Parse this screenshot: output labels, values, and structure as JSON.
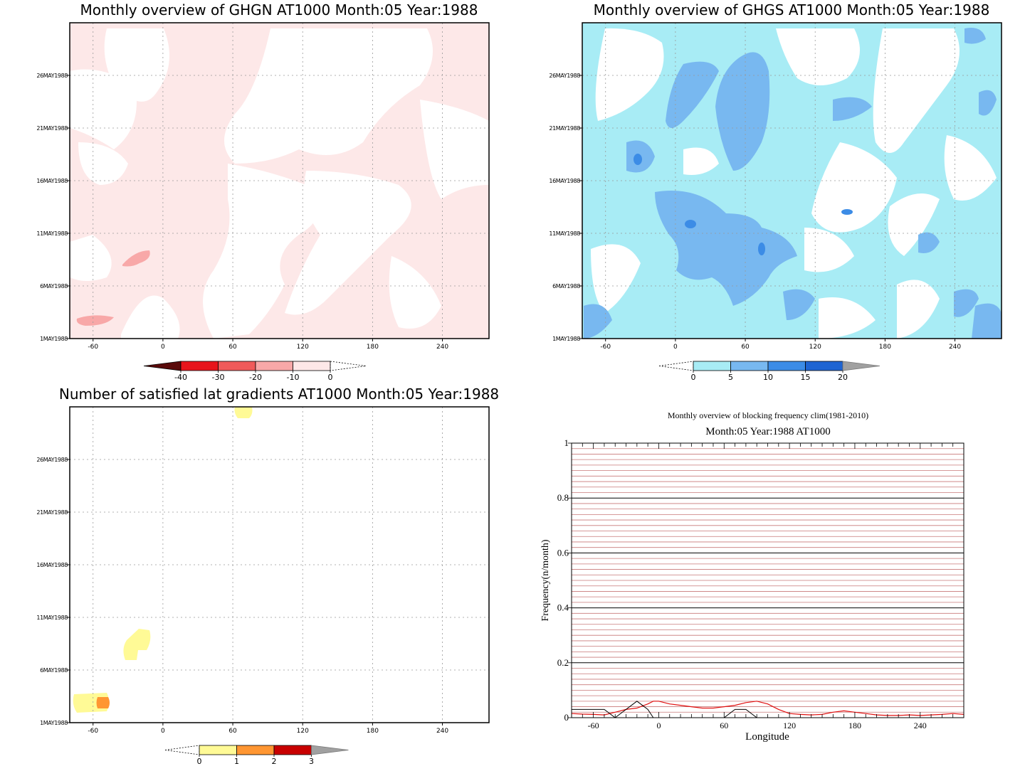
{
  "panels": [
    {
      "title": "Monthly overview of GHGN AT1000 Month:05 Year:1988",
      "y_ticks": [
        "1MAY1988",
        "6MAY1988",
        "11MAY1988",
        "16MAY1988",
        "21MAY1988",
        "26MAY1988"
      ],
      "x_ticks": [
        "-60",
        "0",
        "60",
        "120",
        "180",
        "240"
      ],
      "colorbar": {
        "labels": [
          "-40",
          "-30",
          "-20",
          "-10",
          "0"
        ],
        "colors": [
          "#5a0a0a",
          "#e8141c",
          "#f05a5a",
          "#f8a8a8",
          "#fde8e8"
        ]
      }
    },
    {
      "title": "Monthly overview of GHGS AT1000 Month:05 Year:1988",
      "y_ticks": [
        "1MAY1988",
        "6MAY1988",
        "11MAY1988",
        "16MAY1988",
        "21MAY1988",
        "26MAY1988"
      ],
      "x_ticks": [
        "-60",
        "0",
        "60",
        "120",
        "180",
        "240"
      ],
      "colorbar": {
        "labels": [
          "0",
          "5",
          "10",
          "15",
          "20"
        ],
        "colors": [
          "#a8ecf5",
          "#78b8f0",
          "#3c8ce6",
          "#1e64d2",
          "#a0a0a0"
        ]
      }
    },
    {
      "title": "Number of satisfied lat gradients AT1000 Month:05 Year:1988",
      "y_ticks": [
        "1MAY1988",
        "6MAY1988",
        "11MAY1988",
        "16MAY1988",
        "21MAY1988",
        "26MAY1988"
      ],
      "x_ticks": [
        "-60",
        "0",
        "60",
        "120",
        "180",
        "240"
      ],
      "colorbar": {
        "labels": [
          "0",
          "1",
          "2",
          "3"
        ],
        "colors": [
          "#fffa96",
          "#ff9632",
          "#c80000",
          "#a0a0a0"
        ]
      }
    }
  ],
  "freq_panel": {
    "title": "Monthly overview of blocking frequency clim(1981-2010)",
    "subtitle": "Month:05 Year:1988  AT1000",
    "xlabel": "Longitude",
    "ylabel": "Frequency(n/month)",
    "y_ticks": [
      "0",
      "0.2",
      "0.4",
      "0.6",
      "0.8",
      "1"
    ],
    "x_ticks": [
      "-60",
      "0",
      "60",
      "120",
      "180",
      "240"
    ]
  },
  "chart_data": [
    {
      "type": "heatmap",
      "title": "Monthly overview of GHGN AT1000 Month:05 Year:1988",
      "x_range": [
        -80,
        280
      ],
      "y_range": [
        "1MAY1988",
        "31MAY1988"
      ],
      "color_scale": [
        -40,
        -30,
        -20,
        -10,
        0
      ],
      "notes": "mostly 0 to -10 (light pink); small -10 to -20 patches near lon -65..-45 on 2-3 MAY and near -25..-10 on 8-9 MAY"
    },
    {
      "type": "heatmap",
      "title": "Monthly overview of GHGS AT1000 Month:05 Year:1988",
      "x_range": [
        -80,
        280
      ],
      "y_range": [
        "1MAY1988",
        "31MAY1988"
      ],
      "color_scale": [
        0,
        5,
        10,
        15,
        20
      ],
      "notes": "widespread 0-5 values; 5-10 cores near lon 60-80 (18-25 MAY), lon 0-100 (6-14 MAY); isolated 10-15 spots"
    },
    {
      "type": "heatmap",
      "title": "Number of satisfied lat gradients AT1000 Month:05 Year:1988",
      "x_range": [
        -80,
        280
      ],
      "y_range": [
        "1MAY1988",
        "31MAY1988"
      ],
      "color_scale": [
        0,
        1,
        2,
        3
      ],
      "notes": "value 0-1 near lon -75..-45 on 2-3 MAY (1-2 core at -50), lon -35..-10 on 7-9 MAY, lon 60..75 on 30 MAY"
    },
    {
      "type": "line",
      "title": "Monthly overview of blocking frequency clim(1981-2010)",
      "subtitle": "Month:05 Year:1988  AT1000",
      "xlabel": "Longitude",
      "ylabel": "Frequency(n/month)",
      "xlim": [
        -80,
        280
      ],
      "ylim": [
        0,
        1
      ],
      "x": [
        -80,
        -70,
        -60,
        -50,
        -40,
        -30,
        -20,
        -10,
        -5,
        0,
        10,
        20,
        30,
        40,
        50,
        60,
        70,
        80,
        90,
        100,
        110,
        120,
        130,
        140,
        150,
        160,
        170,
        180,
        190,
        200,
        210,
        220,
        230,
        240,
        250,
        260,
        270,
        280
      ],
      "series": [
        {
          "color": "#e01010",
          "values": [
            0.015,
            0.013,
            0.012,
            0.01,
            0.02,
            0.03,
            0.035,
            0.05,
            0.06,
            0.06,
            0.05,
            0.045,
            0.04,
            0.035,
            0.035,
            0.04,
            0.045,
            0.055,
            0.06,
            0.05,
            0.03,
            0.015,
            0.012,
            0.01,
            0.012,
            0.02,
            0.025,
            0.02,
            0.015,
            0.01,
            0.008,
            0.008,
            0.01,
            0.008,
            0.01,
            0.012,
            0.015,
            0.012
          ]
        },
        {
          "color": "#000000",
          "values": [
            0.03,
            0.03,
            0.03,
            0.03,
            0,
            0.03,
            0.06,
            0.03,
            0,
            0,
            0,
            0,
            0,
            0,
            0,
            0,
            0.03,
            0.03,
            0,
            0,
            0,
            0,
            0,
            0,
            0,
            0,
            0,
            0,
            0,
            0,
            0,
            0,
            0,
            0,
            0,
            0,
            0,
            0
          ]
        }
      ]
    }
  ]
}
